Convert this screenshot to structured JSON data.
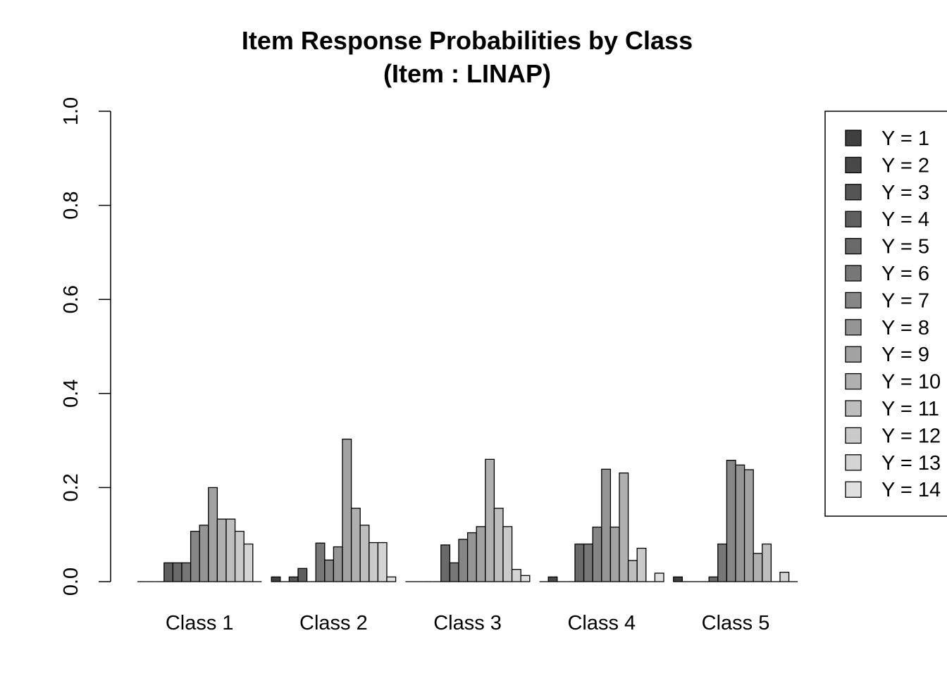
{
  "chart_data": {
    "type": "bar",
    "title": "Item Response Probabilities by Class",
    "subtitle": "(Item : LINAP)",
    "xlabel": "",
    "ylabel": "",
    "ylim": [
      0,
      1
    ],
    "yticks": [
      "0.0",
      "0.2",
      "0.4",
      "0.6",
      "0.8",
      "1.0"
    ],
    "categories": [
      "Class 1",
      "Class 2",
      "Class 3",
      "Class 4",
      "Class 5"
    ],
    "series": [
      {
        "name": "Y = 1",
        "values": [
          0.0,
          0.01,
          0.0,
          0.0,
          0.01
        ],
        "color": "#3f3f3f"
      },
      {
        "name": "Y = 2",
        "values": [
          0.0,
          0.0,
          0.0,
          0.01,
          0.0
        ],
        "color": "#484848"
      },
      {
        "name": "Y = 3",
        "values": [
          0.0,
          0.01,
          0.0,
          0.0,
          0.0
        ],
        "color": "#555555"
      },
      {
        "name": "Y = 4",
        "values": [
          0.04,
          0.028,
          0.0,
          0.0,
          0.0
        ],
        "color": "#5f5f5f"
      },
      {
        "name": "Y = 5",
        "values": [
          0.04,
          0.0,
          0.078,
          0.08,
          0.01
        ],
        "color": "#696969"
      },
      {
        "name": "Y = 6",
        "values": [
          0.04,
          0.082,
          0.04,
          0.08,
          0.08
        ],
        "color": "#777777"
      },
      {
        "name": "Y = 7",
        "values": [
          0.107,
          0.046,
          0.09,
          0.116,
          0.258
        ],
        "color": "#868686"
      },
      {
        "name": "Y = 8",
        "values": [
          0.12,
          0.074,
          0.104,
          0.239,
          0.248
        ],
        "color": "#959595"
      },
      {
        "name": "Y = 9",
        "values": [
          0.2,
          0.303,
          0.117,
          0.116,
          0.238
        ],
        "color": "#a2a2a2"
      },
      {
        "name": "Y = 10",
        "values": [
          0.133,
          0.156,
          0.26,
          0.231,
          0.06
        ],
        "color": "#b0b0b0"
      },
      {
        "name": "Y = 11",
        "values": [
          0.133,
          0.12,
          0.156,
          0.045,
          0.08
        ],
        "color": "#bebebe"
      },
      {
        "name": "Y = 12",
        "values": [
          0.107,
          0.083,
          0.117,
          0.071,
          0.0
        ],
        "color": "#cacaca"
      },
      {
        "name": "Y = 13",
        "values": [
          0.08,
          0.083,
          0.026,
          0.0,
          0.02
        ],
        "color": "#d4d4d4"
      },
      {
        "name": "Y = 14",
        "values": [
          0.0,
          0.01,
          0.013,
          0.018,
          0.0
        ],
        "color": "#e0e0e0"
      }
    ],
    "legend": "right",
    "grid": false
  }
}
